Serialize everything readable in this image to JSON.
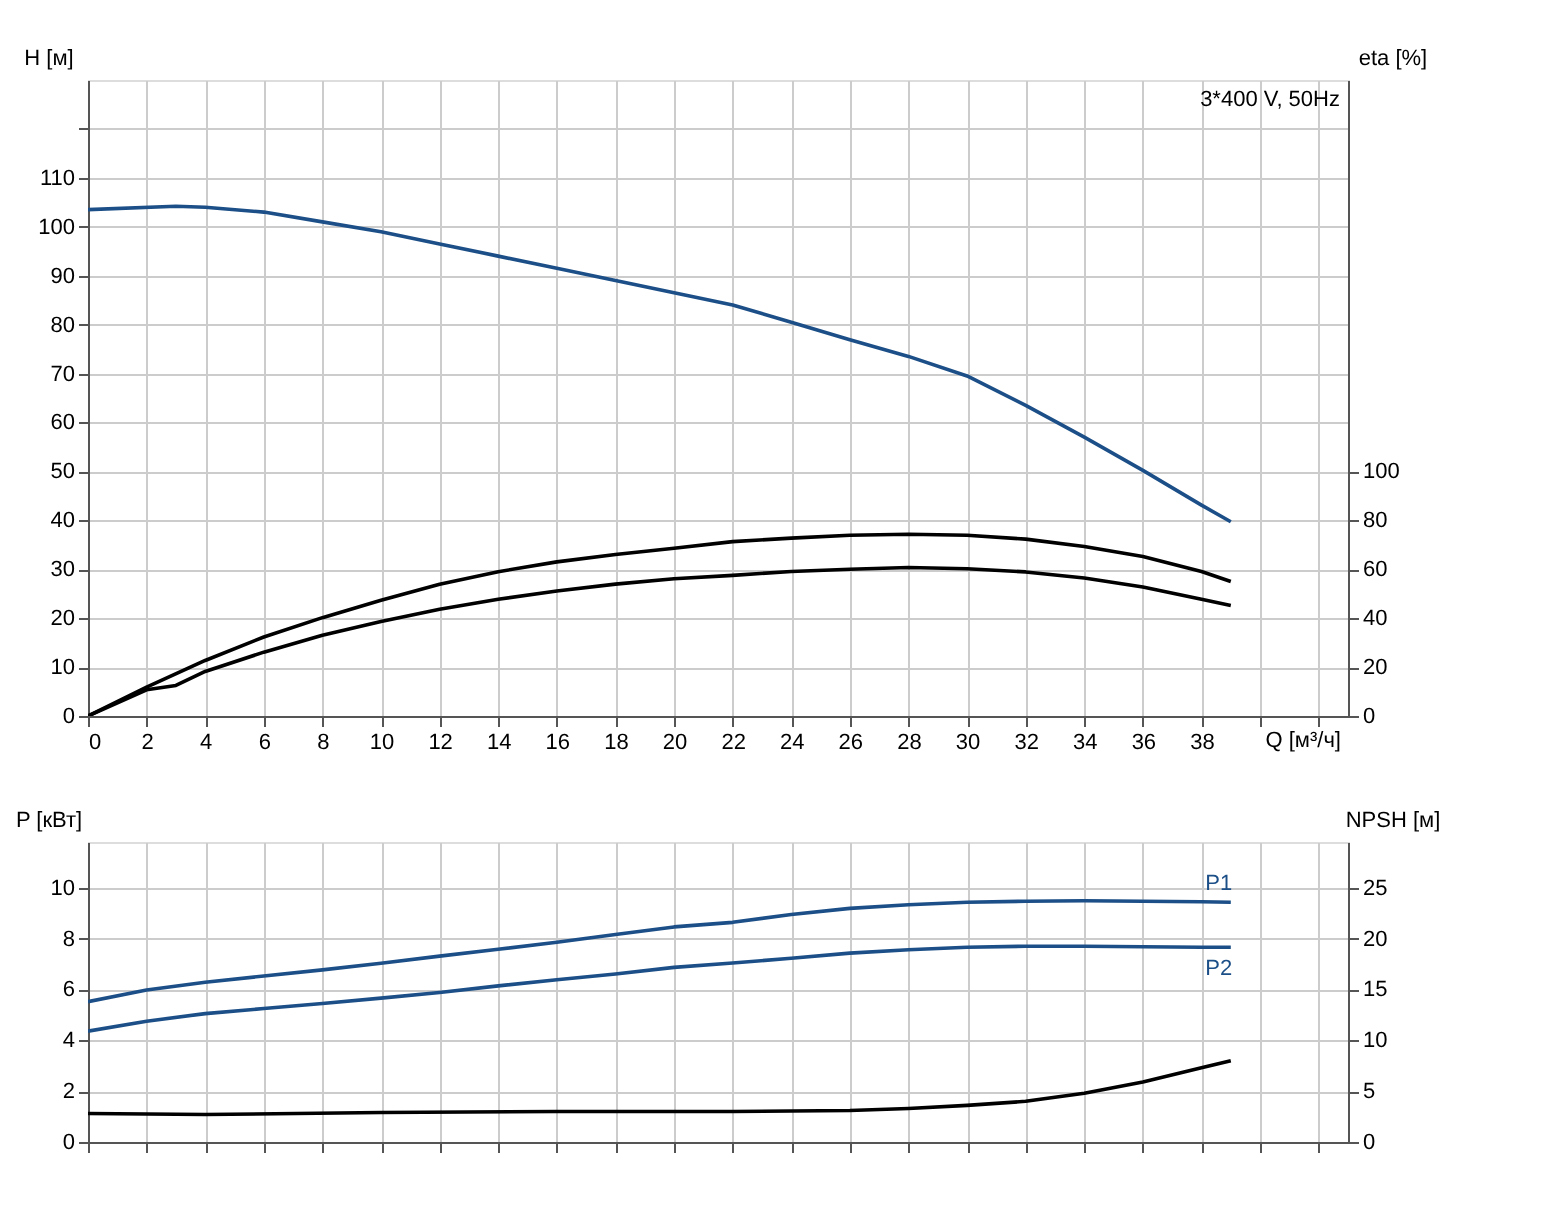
{
  "chart_data": [
    {
      "type": "line",
      "xlabel": "Q [м³/ч]",
      "ylabel": "H [м]",
      "y2label": "eta [%]",
      "annotations": [
        "3*400 V, 50Hz"
      ],
      "xlim": [
        0,
        43
      ],
      "xticks": [
        0,
        2,
        4,
        6,
        8,
        10,
        12,
        14,
        16,
        18,
        20,
        22,
        24,
        26,
        28,
        30,
        32,
        34,
        36,
        38,
        {
          "value": 40,
          "label": null
        },
        {
          "value": 42,
          "label": null
        }
      ],
      "ylim": [
        0,
        130
      ],
      "yticks": [
        0,
        10,
        20,
        30,
        40,
        50,
        60,
        70,
        80,
        90,
        100,
        110,
        {
          "value": 120,
          "label": null
        }
      ],
      "y2lim": [
        0,
        260
      ],
      "y2ticks": [
        0,
        20,
        40,
        60,
        80,
        100
      ],
      "grid": true,
      "legend": false,
      "line_style": "solid",
      "marker": "none",
      "series": [
        {
          "color": "#1c4f87",
          "x": [
            0,
            3,
            4,
            6,
            8,
            10,
            12,
            14,
            16,
            18,
            20,
            22,
            24,
            26,
            28,
            30,
            32,
            34,
            36,
            38,
            39
          ],
          "values": [
            103.5,
            104.2,
            104,
            103,
            101,
            99,
            96.5,
            94,
            91.5,
            89,
            86.5,
            84,
            80.5,
            76.9,
            73.5,
            69.5,
            63.5,
            57,
            50.2,
            43.1,
            39.7
          ]
        },
        {
          "color": "#000000",
          "axis": "y2",
          "x": [
            0,
            2,
            4,
            6,
            8,
            10,
            12,
            14,
            16,
            18,
            20,
            22,
            24,
            26,
            28,
            30,
            32,
            34,
            36,
            38,
            39
          ],
          "values": [
            0,
            11.8,
            22.7,
            32.3,
            40.2,
            47.3,
            53.9,
            59,
            63,
            66,
            68.6,
            71.3,
            72.7,
            73.9,
            74.3,
            73.9,
            72.3,
            69.3,
            65.2,
            59.1,
            55
          ]
        },
        {
          "color": "#000000",
          "axis": "y2",
          "x": [
            0,
            2,
            3,
            4,
            6,
            8,
            10,
            12,
            14,
            16,
            18,
            20,
            22,
            24,
            26,
            28,
            30,
            32,
            34,
            36,
            38,
            39
          ],
          "values": [
            0,
            10.7,
            12.5,
            18.2,
            26.1,
            33,
            38.6,
            43.6,
            47.7,
            51.1,
            53.9,
            56.1,
            57.5,
            59.1,
            60,
            60.7,
            60.2,
            58.9,
            56.4,
            52.7,
            47.7,
            45.2
          ]
        }
      ]
    },
    {
      "type": "line",
      "ylabel": "P [кВт]",
      "y2label": "NPSH [м]",
      "xlim": [
        0,
        43
      ],
      "xticks": [
        0,
        2,
        4,
        6,
        8,
        10,
        12,
        14,
        16,
        18,
        20,
        22,
        24,
        26,
        28,
        30,
        32,
        34,
        36,
        38,
        40,
        42
      ],
      "ylim": [
        0,
        11.8
      ],
      "yticks": [
        0,
        2,
        4,
        6,
        8,
        10
      ],
      "y2lim": [
        0,
        29.5
      ],
      "y2ticks": [
        0,
        5,
        10,
        15,
        20,
        25
      ],
      "tick_labels": "y",
      "grid": true,
      "legend": false,
      "line_style": "solid",
      "marker": "none",
      "series": [
        {
          "name": "P1",
          "color": "#1c4f87",
          "x": [
            0,
            2,
            4,
            6,
            8,
            10,
            12,
            14,
            16,
            18,
            20,
            22,
            24,
            26,
            28,
            30,
            32,
            34,
            36,
            38,
            39
          ],
          "values": [
            5.52,
            5.98,
            6.28,
            6.53,
            6.77,
            7.03,
            7.31,
            7.58,
            7.86,
            8.16,
            8.46,
            8.64,
            8.95,
            9.19,
            9.33,
            9.43,
            9.47,
            9.49,
            9.47,
            9.45,
            9.43
          ]
        },
        {
          "name": "P2",
          "color": "#1c4f87",
          "x": [
            0,
            2,
            4,
            6,
            8,
            10,
            12,
            14,
            16,
            18,
            20,
            22,
            24,
            26,
            28,
            30,
            32,
            34,
            36,
            38,
            39
          ],
          "values": [
            4.36,
            4.75,
            5.05,
            5.25,
            5.45,
            5.66,
            5.88,
            6.14,
            6.38,
            6.61,
            6.87,
            7.04,
            7.23,
            7.43,
            7.56,
            7.66,
            7.7,
            7.7,
            7.68,
            7.66,
            7.66
          ]
        },
        {
          "color": "#000000",
          "axis": "y2",
          "x": [
            0,
            4,
            10,
            16,
            22,
            26,
            28,
            30,
            32,
            34,
            36,
            38,
            39
          ],
          "values": [
            2.8,
            2.7,
            2.9,
            3,
            3,
            3.1,
            3.3,
            3.6,
            4,
            4.8,
            5.9,
            7.3,
            8
          ]
        }
      ]
    }
  ]
}
